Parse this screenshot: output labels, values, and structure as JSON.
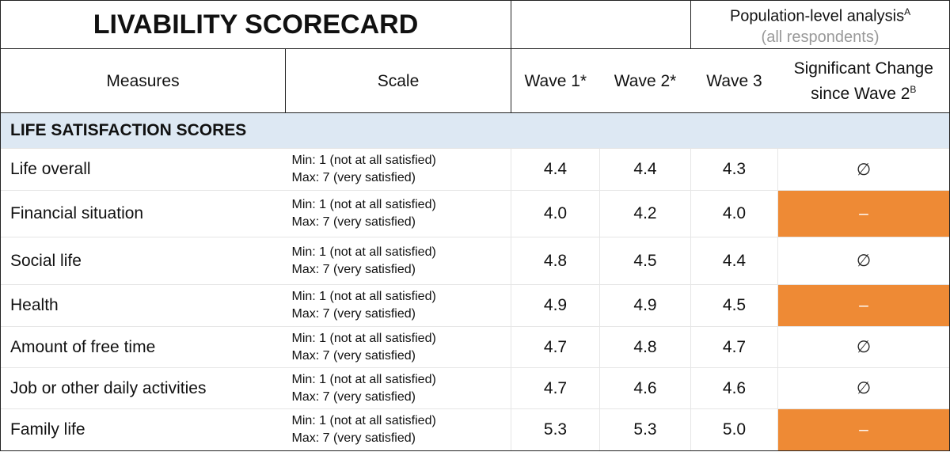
{
  "header": {
    "title": "LIVABILITY SCORECARD",
    "population": "Population-level analysis",
    "population_note": "A",
    "respondents": "(all respondents)"
  },
  "columns": {
    "measures": "Measures",
    "scale": "Scale",
    "wave1": "Wave 1*",
    "wave2": "Wave 2*",
    "wave3": "Wave 3",
    "change": "Significant Change since Wave 2",
    "change_note": "B"
  },
  "section": "LIFE SATISFACTION SCORES",
  "rows": [
    {
      "measure": "Life overall",
      "scale_min": "Min: 1 (not at all satisfied)",
      "scale_max": "Max: 7 (very satisfied)",
      "wave1": "4.4",
      "wave2": "4.4",
      "wave3": "4.3",
      "change": "∅"
    },
    {
      "measure": "Financial situation",
      "scale_min": "Min: 1 (not at all satisfied)",
      "scale_max": "Max: 7 (very satisfied)",
      "wave1": "4.0",
      "wave2": "4.2",
      "wave3": "4.0",
      "change": "–",
      "change_color": "#ee8a35"
    },
    {
      "measure": "Social life",
      "scale_min": "Min: 1 (not at all satisfied)",
      "scale_max": "Max: 7 (very satisfied)",
      "wave1": "4.8",
      "wave2": "4.5",
      "wave3": "4.4",
      "change": "∅"
    },
    {
      "measure": "Health",
      "scale_min": "Min: 1 (not at all satisfied)",
      "scale_max": "Max: 7 (very satisfied)",
      "wave1": "4.9",
      "wave2": "4.9",
      "wave3": "4.5",
      "change": "–",
      "change_color": "#ee8a35"
    },
    {
      "measure": "Amount of free time",
      "scale_min": "Min: 1 (not at all satisfied)",
      "scale_max": "Max: 7 (very satisfied)",
      "wave1": "4.7",
      "wave2": "4.8",
      "wave3": "4.7",
      "change": "∅"
    },
    {
      "measure": "Job or other daily activities",
      "scale_min": "Min: 1 (not at all satisfied)",
      "scale_max": "Max: 7 (very satisfied)",
      "wave1": "4.7",
      "wave2": "4.6",
      "wave3": "4.6",
      "change": "∅"
    },
    {
      "measure": "Family life",
      "scale_min": "Min: 1 (not at all satisfied)",
      "scale_max": "Max: 7 (very satisfied)",
      "wave1": "5.3",
      "wave2": "5.3",
      "wave3": "5.0",
      "change": "–",
      "change_color": "#ee8a35"
    }
  ]
}
